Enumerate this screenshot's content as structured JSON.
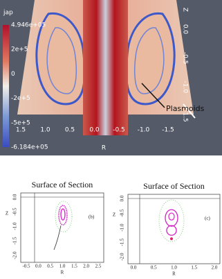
{
  "top_panel": {
    "colorbar": {
      "title": "jap",
      "labels": [
        "4.946e+05",
        "2e+5",
        "0",
        "-2e+5",
        "-5e+5",
        "-6.184e+05"
      ]
    },
    "x_axis": {
      "label": "R",
      "ticks": [
        "1.5",
        "1.0",
        "0.5",
        "0.0",
        "-0.5",
        "-1.0",
        "-1.5"
      ]
    },
    "z_axis": {
      "label": "Z",
      "ticks": [
        "0.0",
        "-0.5",
        "-1.0",
        "-1.5"
      ]
    },
    "annotation": "Plasmoids"
  },
  "panels": [
    {
      "title": "Surface of Section",
      "tag": "(b)",
      "x_label": "R",
      "y_label": "Z",
      "x_ticks": [
        "-0.5",
        "0.0",
        "0.5",
        "1.0",
        "1.5",
        "2.0",
        "2.5"
      ],
      "y_ticks": [
        "0.0",
        "-0.5",
        "-1.0",
        "-1.5",
        "-2.0"
      ]
    },
    {
      "title": "Surface of Section",
      "tag": "(c)",
      "x_label": "R",
      "y_label": "Z",
      "x_ticks": [
        "0.0",
        "0.5",
        "1.0",
        "1.5",
        "2.0"
      ],
      "y_ticks": [
        "0.0",
        "-0.5",
        "-1.0",
        "-1.5",
        "-2.0"
      ]
    }
  ]
}
